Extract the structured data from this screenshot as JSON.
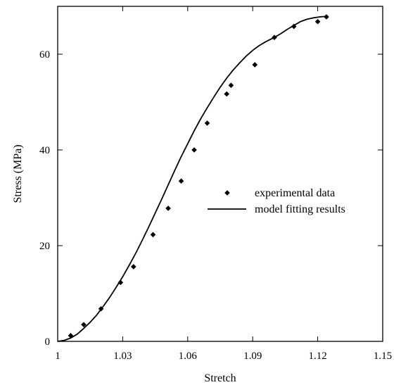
{
  "chart_data": {
    "type": "scatter",
    "xlabel": "Stretch",
    "ylabel": "Stress (MPa)",
    "xlim": [
      1.0,
      1.15
    ],
    "ylim": [
      0,
      70
    ],
    "xticks": [
      1.0,
      1.03,
      1.06,
      1.09,
      1.12,
      1.15
    ],
    "xtick_labels": [
      "1",
      "1.03",
      "1.06",
      "1.09",
      "1.12",
      "1.15"
    ],
    "yticks": [
      0,
      20,
      40,
      60
    ],
    "ytick_labels": [
      "0",
      "20",
      "40",
      "60"
    ],
    "grid": false,
    "legend": {
      "position": "center-right"
    },
    "series": [
      {
        "name": "experimental data",
        "kind": "scatter",
        "marker": "diamond",
        "color": "#000000",
        "x": [
          1.006,
          1.012,
          1.02,
          1.029,
          1.035,
          1.044,
          1.051,
          1.057,
          1.063,
          1.069,
          1.078,
          1.08,
          1.091,
          1.1,
          1.109,
          1.12,
          1.124
        ],
        "y": [
          1.2,
          3.5,
          6.8,
          12.3,
          15.6,
          22.3,
          27.8,
          33.5,
          40.0,
          45.6,
          51.7,
          53.5,
          57.8,
          63.5,
          65.8,
          66.8,
          67.8
        ]
      },
      {
        "name": "model fitting results",
        "kind": "line",
        "color": "#000000",
        "x": [
          1.0,
          1.003,
          1.006,
          1.009,
          1.012,
          1.015,
          1.018,
          1.021,
          1.024,
          1.027,
          1.03,
          1.033,
          1.036,
          1.039,
          1.042,
          1.045,
          1.048,
          1.051,
          1.054,
          1.057,
          1.06,
          1.063,
          1.066,
          1.069,
          1.072,
          1.075,
          1.078,
          1.081,
          1.084,
          1.087,
          1.09,
          1.093,
          1.096,
          1.1,
          1.103,
          1.106,
          1.109,
          1.112,
          1.115,
          1.118,
          1.121,
          1.124
        ],
        "y": [
          0.0,
          0.2,
          0.7,
          1.5,
          2.7,
          4.0,
          5.5,
          7.3,
          9.2,
          11.3,
          13.5,
          15.9,
          18.4,
          21.1,
          23.9,
          26.8,
          29.7,
          32.7,
          35.7,
          38.6,
          41.3,
          44.0,
          46.5,
          48.8,
          51.0,
          53.1,
          55.0,
          56.7,
          58.2,
          59.6,
          60.8,
          61.8,
          62.6,
          63.5,
          64.3,
          65.2,
          66.0,
          66.8,
          67.3,
          67.6,
          67.8,
          67.9
        ]
      }
    ]
  }
}
